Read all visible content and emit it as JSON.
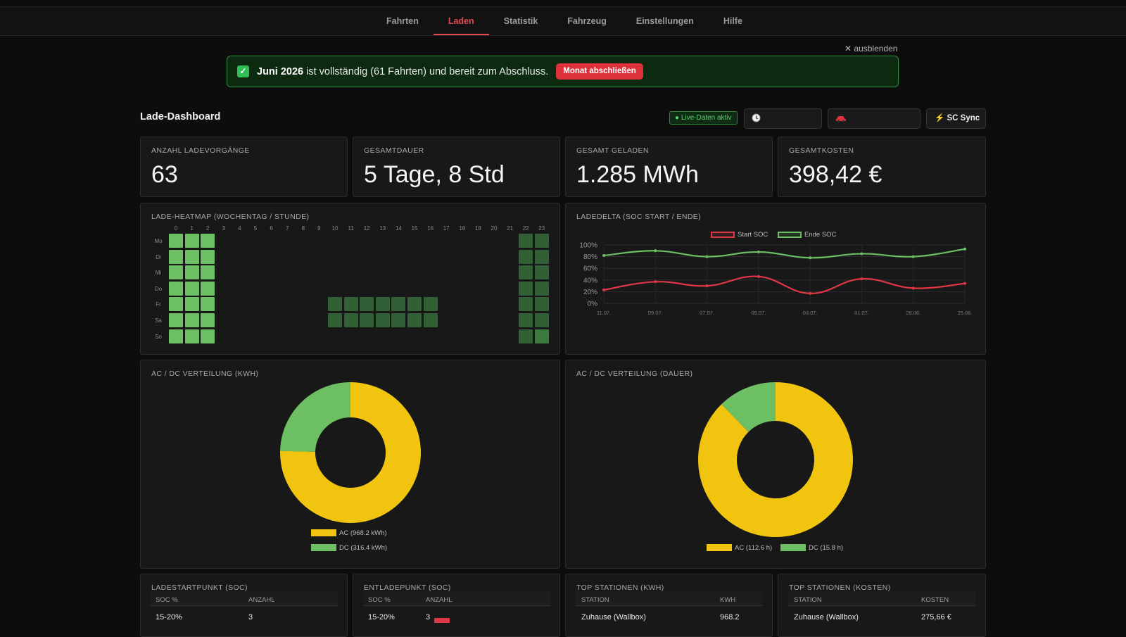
{
  "nav": {
    "items": [
      "Fahrten",
      "Laden",
      "Statistik",
      "Fahrzeug",
      "Einstellungen",
      "Hilfe"
    ],
    "active": "Laden"
  },
  "banner": {
    "hide_label": "✕ ausblenden",
    "month": "Juni 2026",
    "text": " ist vollständig (61 Fahrten) und bereit zum Abschluss.",
    "button": "Monat abschließen"
  },
  "dashboard": {
    "title": "Lade-Dashboard",
    "live_badge": "● Live-Daten aktiv",
    "time_icon": "clock-icon",
    "vehicle_icon": "car-icon",
    "sync_label": "⚡ SC Sync"
  },
  "kpis": [
    {
      "label": "ANZAHL LADEVORGÄNGE",
      "value": "63"
    },
    {
      "label": "GESAMTDAUER",
      "value": "5 Tage, 8 Std"
    },
    {
      "label": "GESAMT GELADEN",
      "value": "1.285 MWh"
    },
    {
      "label": "GESAMTKOSTEN",
      "value": "398,42 €"
    }
  ],
  "heatmap": {
    "title": "LADE-HEATMAP (WOCHENTAG / STUNDE)",
    "hours": [
      "0",
      "1",
      "2",
      "3",
      "4",
      "5",
      "6",
      "7",
      "8",
      "9",
      "10",
      "11",
      "12",
      "13",
      "14",
      "15",
      "16",
      "17",
      "18",
      "19",
      "20",
      "21",
      "22",
      "23"
    ],
    "days": [
      "Mo",
      "Di",
      "Mi",
      "Do",
      "Fr",
      "Sa",
      "So"
    ],
    "levels": [
      [
        3,
        3,
        3,
        0,
        0,
        0,
        0,
        0,
        0,
        0,
        0,
        0,
        0,
        0,
        0,
        0,
        0,
        0,
        0,
        0,
        0,
        0,
        1,
        1
      ],
      [
        3,
        3,
        3,
        0,
        0,
        0,
        0,
        0,
        0,
        0,
        0,
        0,
        0,
        0,
        0,
        0,
        0,
        0,
        0,
        0,
        0,
        0,
        1,
        1
      ],
      [
        3,
        3,
        3,
        0,
        0,
        0,
        0,
        0,
        0,
        0,
        0,
        0,
        0,
        0,
        0,
        0,
        0,
        0,
        0,
        0,
        0,
        0,
        1,
        1
      ],
      [
        3,
        3,
        3,
        0,
        0,
        0,
        0,
        0,
        0,
        0,
        0,
        0,
        0,
        0,
        0,
        0,
        0,
        0,
        0,
        0,
        0,
        0,
        1,
        1
      ],
      [
        3,
        3,
        3,
        0,
        0,
        0,
        0,
        0,
        0,
        0,
        1,
        1,
        1,
        1,
        1,
        1,
        1,
        0,
        0,
        0,
        0,
        0,
        1,
        1
      ],
      [
        3,
        3,
        3,
        0,
        0,
        0,
        0,
        0,
        0,
        0,
        1,
        1,
        1,
        1,
        1,
        1,
        1,
        0,
        0,
        0,
        0,
        0,
        1,
        1
      ],
      [
        3,
        3,
        3,
        0,
        0,
        0,
        0,
        0,
        0,
        0,
        0,
        0,
        0,
        0,
        0,
        0,
        0,
        0,
        0,
        0,
        0,
        0,
        1,
        2
      ]
    ]
  },
  "chart_data": [
    {
      "type": "line",
      "title": "LADEDELTA (SOC START / ENDE)",
      "x": [
        "11.07.",
        "09.07.",
        "07.07.",
        "05.07.",
        "03.07.",
        "01.07.",
        "28.06.",
        "25.06."
      ],
      "series": [
        {
          "name": "Start SOC",
          "color": "#e03645",
          "values": [
            23,
            37,
            30,
            46,
            17,
            42,
            26,
            34
          ]
        },
        {
          "name": "Ende SOC",
          "color": "#6cc063",
          "values": [
            82,
            90,
            80,
            88,
            78,
            85,
            80,
            93
          ]
        }
      ],
      "yticks": [
        "100%",
        "80%",
        "60%",
        "40%",
        "20%",
        "0%"
      ],
      "ylim": [
        0,
        100
      ],
      "legend": "top"
    },
    {
      "type": "pie",
      "title": "AC / DC VERTEILUNG (KWH)",
      "labels": [
        "AC (968.2 kWh)",
        "DC (316.4 kWh)"
      ],
      "values": [
        968.2,
        316.4
      ],
      "colors": [
        "#f1c40f",
        "#6cc063"
      ],
      "legend": "bottom"
    },
    {
      "type": "pie",
      "title": "AC / DC VERTEILUNG (DAUER)",
      "labels": [
        "AC (112.6 h)",
        "DC (15.8 h)"
      ],
      "values": [
        112.6,
        15.8
      ],
      "colors": [
        "#f1c40f",
        "#6cc063"
      ],
      "legend": "bottom"
    }
  ],
  "tables": {
    "ladestart": {
      "title": "LADESTARTPUNKT (SOC)",
      "headers": [
        "SOC %",
        "ANZAHL"
      ],
      "row": [
        "15-20%",
        "3"
      ]
    },
    "entlade": {
      "title": "ENTLADEPUNKT (SOC)",
      "headers": [
        "SOC %",
        "ANZAHL"
      ],
      "row": [
        "15-20%",
        "3"
      ],
      "bar_fraction": 0.1
    },
    "top_kwh": {
      "title": "TOP STATIONEN (KWH)",
      "headers": [
        "STATION",
        "KWH"
      ],
      "row": [
        "Zuhause (Wallbox)",
        "968.2"
      ]
    },
    "top_kosten": {
      "title": "TOP STATIONEN (KOSTEN)",
      "headers": [
        "STATION",
        "KOSTEN"
      ],
      "row": [
        "Zuhause (Wallbox)",
        "275,66 €"
      ]
    }
  }
}
